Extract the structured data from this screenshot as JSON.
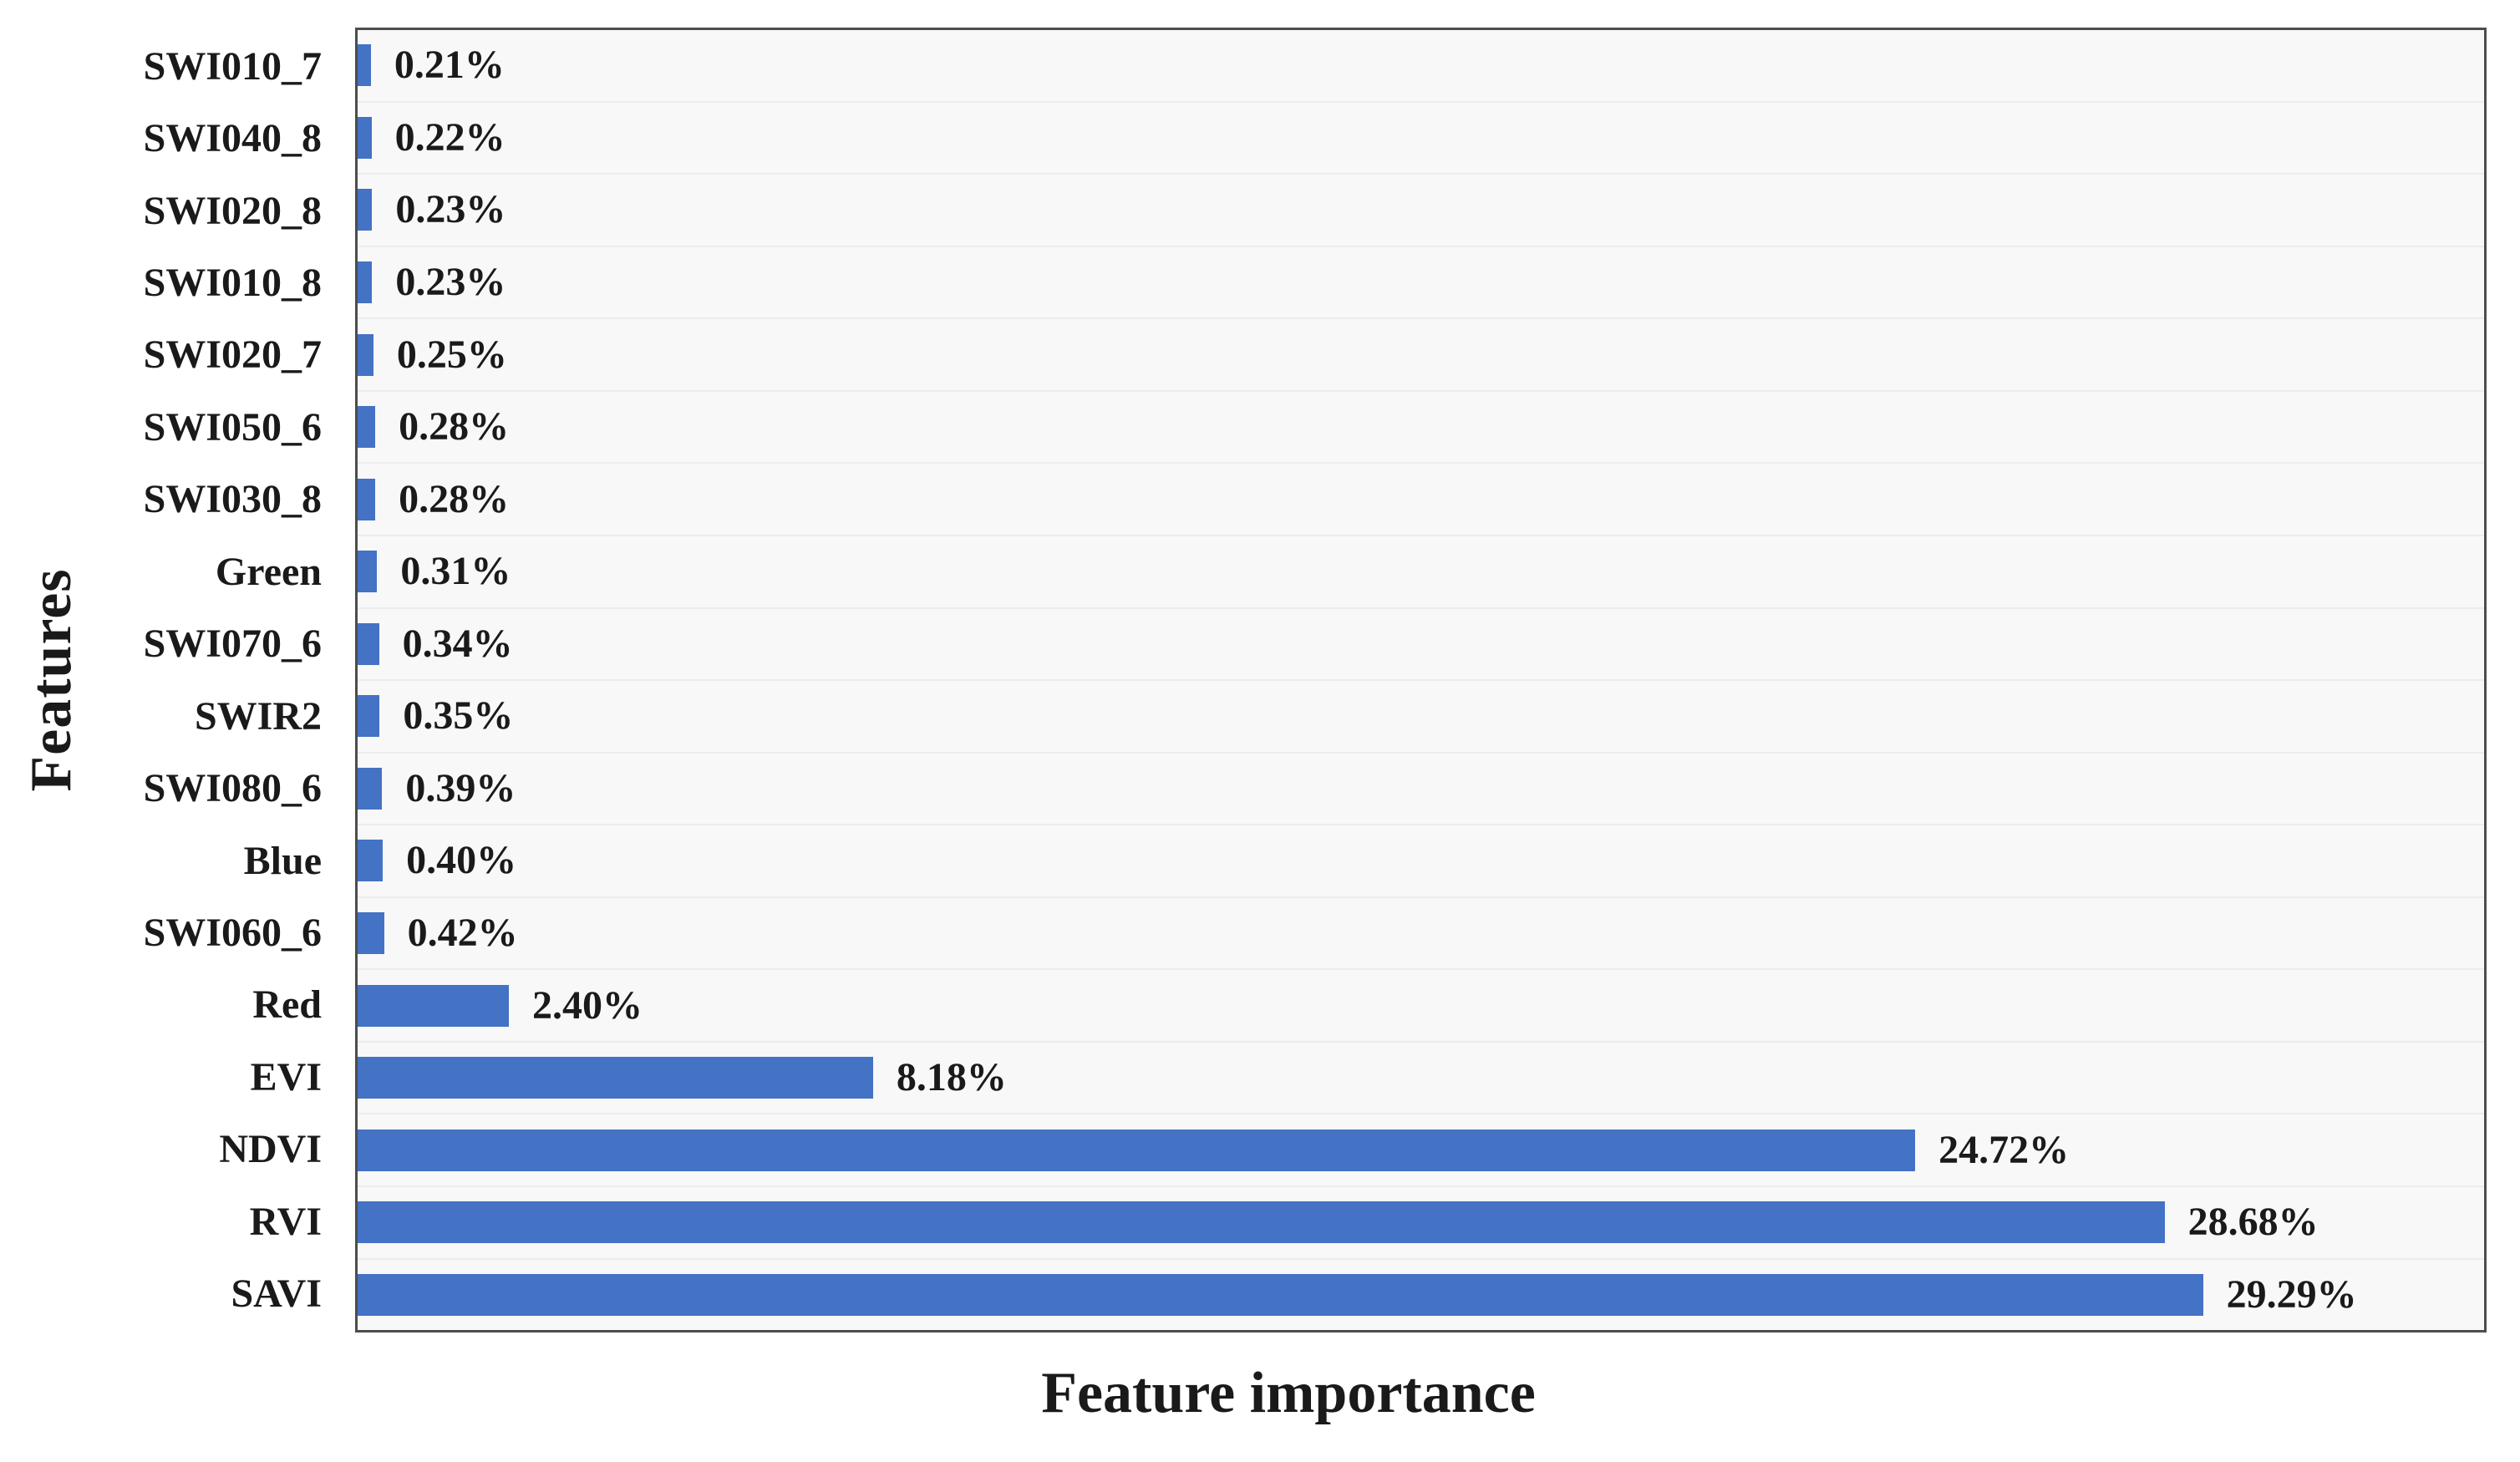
{
  "chart_data": {
    "type": "bar",
    "orientation": "horizontal",
    "title": "",
    "xlabel": "Feature importance",
    "ylabel": "Features",
    "categories": [
      "SWI010_7",
      "SWI040_8",
      "SWI020_8",
      "SWI010_8",
      "SWI020_7",
      "SWI050_6",
      "SWI030_8",
      "Green",
      "SWI070_6",
      "SWIR2",
      "SWI080_6",
      "Blue",
      "SWI060_6",
      "Red",
      "EVI",
      "NDVI",
      "RVI",
      "SAVI"
    ],
    "values": [
      0.21,
      0.22,
      0.23,
      0.23,
      0.25,
      0.28,
      0.28,
      0.31,
      0.34,
      0.35,
      0.39,
      0.4,
      0.42,
      2.4,
      8.18,
      24.72,
      28.68,
      29.29
    ],
    "value_labels": [
      "0.21%",
      "0.22%",
      "0.23%",
      "0.23%",
      "0.25%",
      "0.28%",
      "0.28%",
      "0.31%",
      "0.34%",
      "0.35%",
      "0.39%",
      "0.40%",
      "0.42%",
      "2.40%",
      "8.18%",
      "24.72%",
      "28.68%",
      "29.29%"
    ],
    "xlim": [
      0,
      33.75
    ],
    "grid": "horizontal row separators, no x ticks",
    "legend": "none",
    "colors": {
      "bar": "#4472C4",
      "plot_background": "#f8f8f8",
      "gridline": "#ececec",
      "plot_border": "#4d4d4d",
      "text": "#1a1a1a"
    }
  }
}
